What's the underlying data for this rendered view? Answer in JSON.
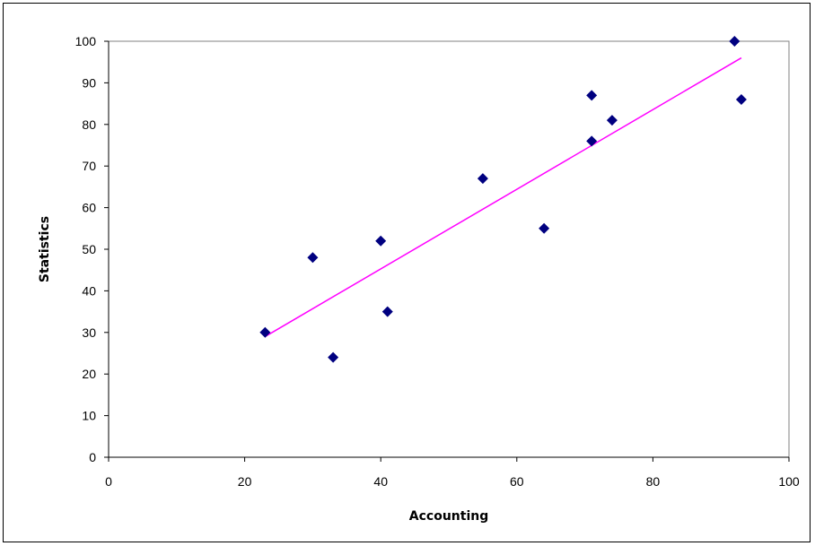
{
  "chart_data": {
    "type": "scatter",
    "title": "",
    "xlabel": "Accounting",
    "ylabel": "Statistics",
    "xlim": [
      0,
      100
    ],
    "ylim": [
      0,
      100
    ],
    "xticks": [
      0,
      20,
      40,
      60,
      80,
      100
    ],
    "yticks": [
      0,
      10,
      20,
      30,
      40,
      50,
      60,
      70,
      80,
      90,
      100
    ],
    "xtick_labels": [
      "0",
      "20",
      "40",
      "60",
      "80",
      "100"
    ],
    "ytick_labels": [
      "0",
      "10",
      "20",
      "30",
      "40",
      "50",
      "60",
      "70",
      "80",
      "90",
      "100"
    ],
    "grid": false,
    "legend": "none",
    "series": [
      {
        "marker": "diamond",
        "color": "#000080",
        "points": [
          {
            "x": 23,
            "y": 30
          },
          {
            "x": 30,
            "y": 48
          },
          {
            "x": 33,
            "y": 24
          },
          {
            "x": 40,
            "y": 52
          },
          {
            "x": 41,
            "y": 35
          },
          {
            "x": 55,
            "y": 67
          },
          {
            "x": 64,
            "y": 55
          },
          {
            "x": 71,
            "y": 87
          },
          {
            "x": 71,
            "y": 76
          },
          {
            "x": 74,
            "y": 81
          },
          {
            "x": 92,
            "y": 100
          },
          {
            "x": 93,
            "y": 86
          }
        ]
      }
    ],
    "trendline": {
      "type": "linear",
      "color": "#ff00ff",
      "x_start": 23,
      "x_end": 93,
      "y_start": 29,
      "y_end": 96
    }
  }
}
